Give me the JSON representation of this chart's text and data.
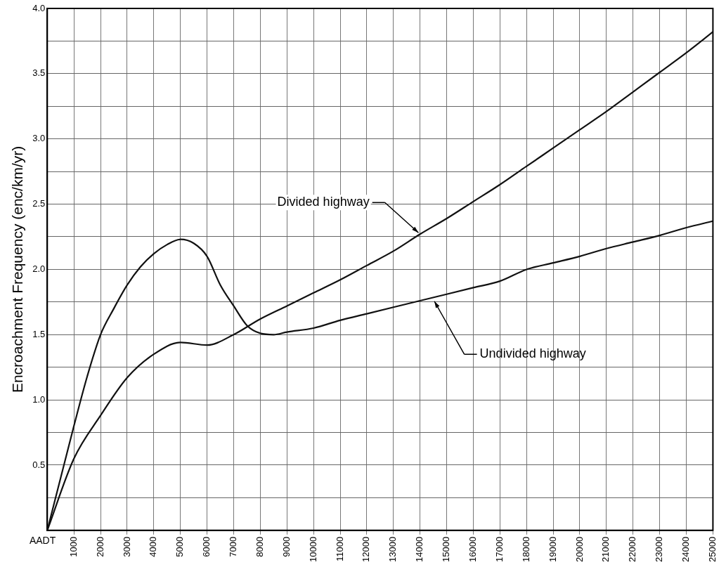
{
  "chart_data": {
    "type": "line",
    "xlabel": "AADT",
    "ylabel": "Encroachment Frequency (enc/km/yr)",
    "xlim": [
      0,
      25000
    ],
    "xticks": [
      1000,
      2000,
      3000,
      4000,
      5000,
      6000,
      7000,
      8000,
      9000,
      10000,
      11000,
      12000,
      13000,
      14000,
      15000,
      16000,
      17000,
      18000,
      19000,
      20000,
      21000,
      22000,
      23000,
      24000,
      25000
    ],
    "ylim": [
      0,
      4.0
    ],
    "yticks": [
      {
        "value": 0,
        "label": null
      },
      {
        "value": 0.25,
        "label": null
      },
      {
        "value": 0.5,
        "label": "0.5"
      },
      {
        "value": 0.75,
        "label": null
      },
      {
        "value": 1.0,
        "label": "1.0"
      },
      {
        "value": 1.25,
        "label": null
      },
      {
        "value": 1.5,
        "label": "1.5"
      },
      {
        "value": 1.75,
        "label": null
      },
      {
        "value": 2.0,
        "label": "2.0"
      },
      {
        "value": 2.25,
        "label": null
      },
      {
        "value": 2.5,
        "label": "2.5"
      },
      {
        "value": 2.75,
        "label": null
      },
      {
        "value": 3.0,
        "label": "3.0"
      },
      {
        "value": 3.25,
        "label": null
      },
      {
        "value": 3.5,
        "label": "3.5"
      },
      {
        "value": 3.75,
        "label": null
      },
      {
        "value": 4.0,
        "label": "4.0"
      }
    ],
    "grid": true,
    "legend": false,
    "marker": "none",
    "line_style": "solid",
    "series": [
      {
        "color": "#111111",
        "x": [
          0,
          1000,
          2000,
          3000,
          4000,
          5000,
          6000,
          7000,
          8000,
          9000,
          10000,
          11000,
          12000,
          13000,
          14000,
          15000,
          16000,
          17000,
          18000,
          19000,
          20000,
          21000,
          22000,
          23000,
          24000,
          25000
        ],
        "values": [
          0,
          0.55,
          0.88,
          1.17,
          1.35,
          1.44,
          1.42,
          1.5,
          1.62,
          1.72,
          1.82,
          1.92,
          2.03,
          2.14,
          2.27,
          2.39,
          2.52,
          2.65,
          2.79,
          2.93,
          3.07,
          3.21,
          3.36,
          3.51,
          3.66,
          3.82
        ]
      },
      {
        "color": "#111111",
        "x": [
          0,
          500,
          1000,
          1500,
          2000,
          2500,
          3000,
          3500,
          4000,
          4500,
          5000,
          5500,
          6000,
          6500,
          7000,
          7500,
          8000,
          8500,
          9000,
          10000,
          11000,
          12000,
          13000,
          14000,
          15000,
          16000,
          17000,
          18000,
          19000,
          20000,
          21000,
          22000,
          23000,
          24000,
          25000
        ],
        "values": [
          0,
          0.4,
          0.8,
          1.18,
          1.5,
          1.7,
          1.88,
          2.02,
          2.12,
          2.19,
          2.23,
          2.2,
          2.1,
          1.88,
          1.72,
          1.57,
          1.51,
          1.5,
          1.52,
          1.55,
          1.61,
          1.66,
          1.71,
          1.76,
          1.81,
          1.86,
          1.91,
          2.0,
          2.05,
          2.1,
          2.16,
          2.21,
          2.26,
          2.32,
          2.37
        ]
      }
    ],
    "annotations": [
      {
        "text": "Divided highway",
        "x": 14000,
        "y": 2.27
      },
      {
        "text": "Undivided highway",
        "x": 14500,
        "y": 1.77
      }
    ]
  }
}
